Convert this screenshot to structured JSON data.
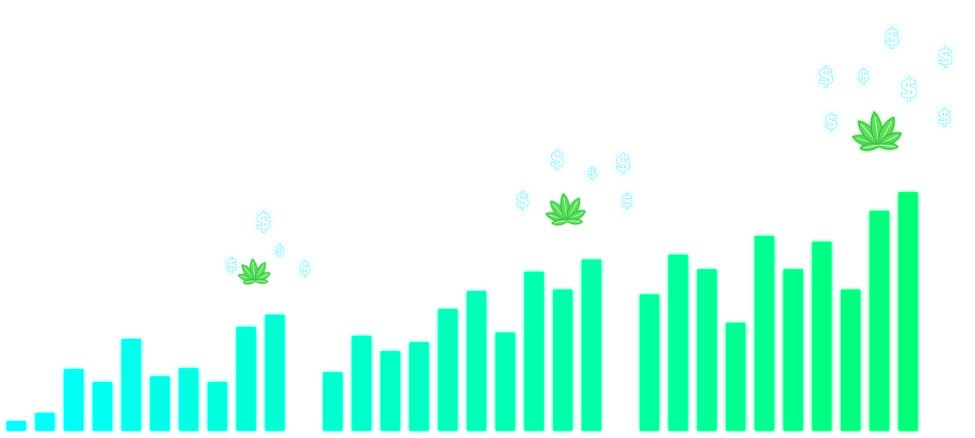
{
  "chart_data": {
    "type": "bar",
    "groups": [
      {
        "values": [
          12,
          22,
          76,
          60,
          113,
          67,
          77,
          60,
          128,
          143
        ]
      },
      {
        "values": [
          72,
          117,
          98,
          109,
          150,
          172,
          121,
          196,
          174,
          211
        ]
      },
      {
        "values": [
          168,
          217,
          199,
          133,
          240,
          199,
          233,
          174,
          271,
          294
        ]
      }
    ],
    "decorations": {
      "coin_symbol": "$",
      "sprout": "plant-sprout",
      "coin_counts": [
        4,
        5,
        7
      ]
    }
  },
  "colors": {
    "background": "#ffffff",
    "bar_start": "#00ffff",
    "bar_end": "#00ff77",
    "coin_glow": "#55f0ff",
    "leaf": "#59e05a"
  }
}
